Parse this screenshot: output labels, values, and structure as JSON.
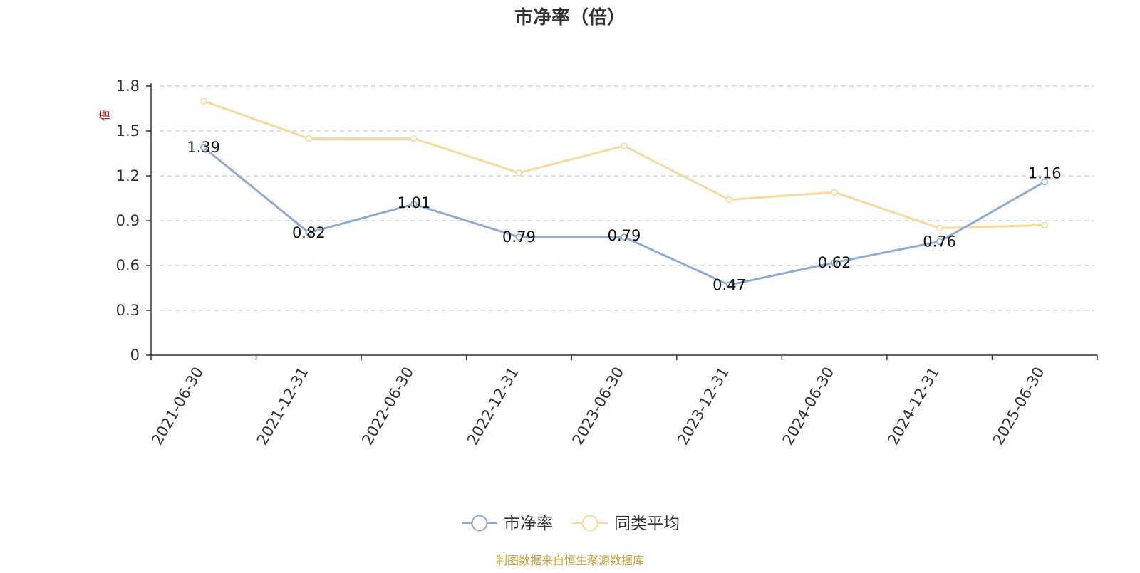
{
  "chart_data": {
    "type": "line",
    "title": "市净率（倍）",
    "ylabel": "倍",
    "xlabel": "",
    "categories": [
      "2021-06-30",
      "2021-12-31",
      "2022-06-30",
      "2022-12-31",
      "2023-06-30",
      "2023-12-31",
      "2024-06-30",
      "2024-12-31",
      "2025-06-30"
    ],
    "ylim": [
      0,
      1.8
    ],
    "yticks": [
      "0",
      "0.3",
      "0.6",
      "0.9",
      "1.2",
      "1.5",
      "1.8"
    ],
    "grid": true,
    "legend_position": "bottom-center",
    "series": [
      {
        "name": "市净率",
        "color": "#8eaad6",
        "values": [
          1.39,
          0.82,
          1.01,
          0.79,
          0.79,
          0.47,
          0.62,
          0.76,
          1.16
        ],
        "labels": [
          "1.39",
          "0.82",
          "1.01",
          "0.79",
          "0.79",
          "0.47",
          "0.62",
          "0.76",
          "1.16"
        ]
      },
      {
        "name": "同类平均",
        "color": "#fad99a",
        "values": [
          1.7,
          1.45,
          1.45,
          1.22,
          1.4,
          1.04,
          1.09,
          0.85,
          0.87
        ]
      }
    ],
    "source": "制图数据来自恒生聚源数据库"
  }
}
